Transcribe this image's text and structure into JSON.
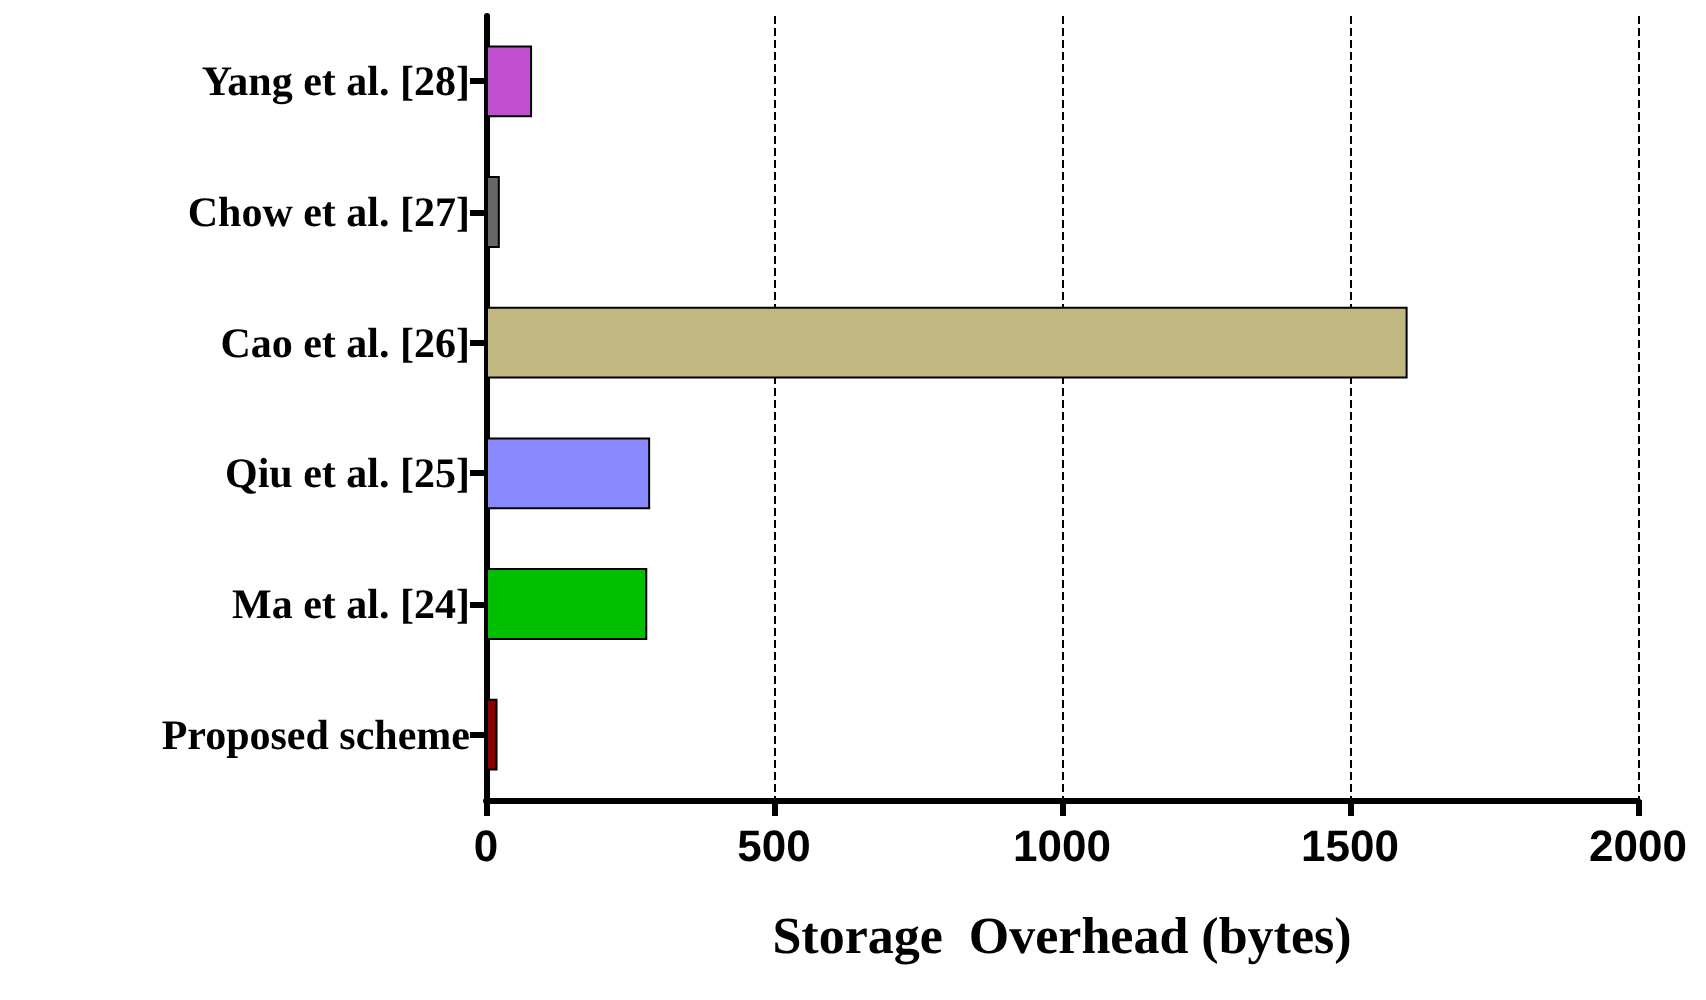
{
  "chart_data": {
    "type": "bar",
    "orientation": "horizontal",
    "xlabel": "Storage  Overhead (bytes)",
    "categories": [
      "Yang et al. [28]",
      "Chow et al. [27]",
      "Cao et al. [26]",
      "Qiu et al. [25]",
      "Ma et al. [24]",
      "Proposed scheme"
    ],
    "values": [
      80,
      24,
      1600,
      285,
      280,
      20
    ],
    "colors": [
      "#c050d0",
      "#666666",
      "#c0b880",
      "#8888ff",
      "#00c000",
      "#8b0000"
    ],
    "xlim": [
      0,
      2000
    ],
    "xticks": [
      0,
      500,
      1000,
      1500,
      2000
    ],
    "grid": "x"
  }
}
